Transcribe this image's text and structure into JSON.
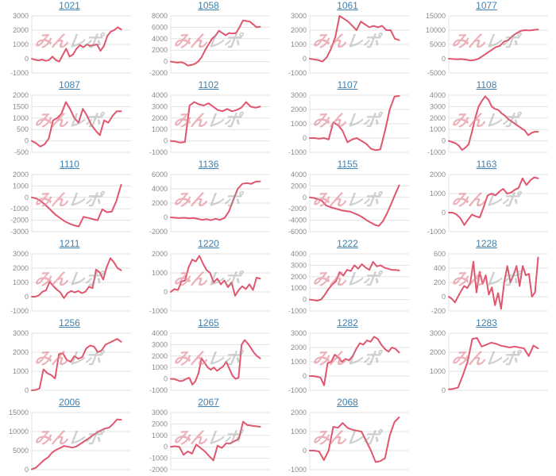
{
  "watermark": {
    "pink": "みん",
    "gray": "レポ"
  },
  "colors": {
    "line": "#e0566e",
    "grid": "#e3e3e3",
    "axis_label": "#8a8a8a",
    "title_link": "#4181ad",
    "background": "#ffffff"
  },
  "chart_data": [
    {
      "type": "line",
      "title": "1021",
      "ylim": [
        -1000,
        3000
      ],
      "yticks": [
        3000,
        2000,
        1000,
        0,
        -1000
      ],
      "values": [
        0,
        -80,
        -120,
        -60,
        -150,
        -100,
        150,
        -100,
        -200,
        250,
        700,
        150,
        300,
        700,
        950,
        800,
        1000,
        900,
        950,
        1000,
        550,
        900,
        1600,
        1900,
        2000,
        2200,
        2050
      ]
    },
    {
      "type": "line",
      "title": "1058",
      "ylim": [
        -2000,
        8000
      ],
      "yticks": [
        8000,
        6000,
        4000,
        2000,
        0,
        -2000
      ],
      "values": [
        0,
        -100,
        -200,
        -100,
        -300,
        -700,
        -600,
        -400,
        0,
        800,
        2000,
        3000,
        4000,
        4500,
        5400,
        5000,
        4600,
        5000,
        4900,
        5000,
        6000,
        7200,
        7100,
        7000,
        6500,
        6000,
        6100
      ]
    },
    {
      "type": "line",
      "title": "1061",
      "ylim": [
        -1000,
        3000
      ],
      "yticks": [
        3000,
        2000,
        1000,
        0,
        -1000
      ],
      "values": [
        0,
        -50,
        -100,
        -200,
        100,
        700,
        1500,
        3000,
        2800,
        2600,
        2300,
        2000,
        2600,
        2400,
        2200,
        2300,
        2200,
        2300,
        2000,
        2000,
        1400,
        1300
      ]
    },
    {
      "type": "line",
      "title": "1077",
      "ylim": [
        -5000,
        15000
      ],
      "yticks": [
        15000,
        10000,
        5000,
        0,
        -5000
      ],
      "values": [
        0,
        -100,
        -200,
        -100,
        -300,
        -600,
        -500,
        0,
        1000,
        2000,
        3000,
        4000,
        4500,
        6000,
        6500,
        8000,
        9000,
        9800,
        10000,
        9900,
        10100,
        10200
      ]
    },
    {
      "type": "line",
      "title": "1087",
      "ylim": [
        -500,
        2000
      ],
      "yticks": [
        2000,
        1500,
        1000,
        500,
        0,
        -500
      ],
      "values": [
        0,
        -100,
        -250,
        -150,
        100,
        900,
        1000,
        1200,
        1700,
        1400,
        1000,
        800,
        1400,
        1100,
        700,
        450,
        250,
        900,
        800,
        1100,
        1300,
        1300
      ]
    },
    {
      "type": "line",
      "title": "1102",
      "ylim": [
        -1000,
        4000
      ],
      "yticks": [
        4000,
        3000,
        2000,
        1000,
        0,
        -1000
      ],
      "values": [
        0,
        -50,
        -150,
        -100,
        3100,
        3400,
        3200,
        3100,
        3300,
        3000,
        2700,
        2600,
        2800,
        2600,
        2700,
        2900,
        3400,
        3000,
        2900,
        3000
      ]
    },
    {
      "type": "line",
      "title": "1107",
      "ylim": [
        -1000,
        3000
      ],
      "yticks": [
        3000,
        2000,
        1000,
        0,
        -1000
      ],
      "values": [
        0,
        0,
        -50,
        0,
        -100,
        1100,
        900,
        500,
        -300,
        -100,
        0,
        -200,
        -400,
        -750,
        -850,
        -800,
        500,
        2000,
        2900,
        2950
      ]
    },
    {
      "type": "line",
      "title": "1108",
      "ylim": [
        -1000,
        4000
      ],
      "yticks": [
        4000,
        3000,
        2000,
        1000,
        0,
        -1000
      ],
      "values": [
        0,
        -100,
        -200,
        -400,
        -800,
        -600,
        -300,
        800,
        2000,
        3000,
        3500,
        3900,
        3600,
        3000,
        2800,
        2700,
        2400,
        2200,
        1900,
        1700,
        1500,
        1300,
        1100,
        900,
        500,
        700,
        800,
        800
      ]
    },
    {
      "type": "line",
      "title": "1110",
      "ylim": [
        -3000,
        2000
      ],
      "yticks": [
        2000,
        1000,
        0,
        -1000,
        -2000,
        -3000
      ],
      "values": [
        0,
        -100,
        -350,
        -700,
        -1100,
        -1500,
        -1800,
        -2100,
        -2300,
        -2450,
        -2550,
        -1700,
        -1800,
        -1900,
        -2000,
        -1050,
        -1300,
        -1250,
        -300,
        1100
      ]
    },
    {
      "type": "line",
      "title": "1136",
      "ylim": [
        -2000,
        6000
      ],
      "yticks": [
        6000,
        4000,
        2000,
        0,
        -2000
      ],
      "values": [
        0,
        -50,
        -100,
        -50,
        -150,
        -100,
        -200,
        -350,
        -250,
        -400,
        -200,
        -350,
        -100,
        800,
        2500,
        4000,
        4700,
        4800,
        4700,
        5000,
        5050
      ]
    },
    {
      "type": "line",
      "title": "1155",
      "ylim": [
        -6000,
        4000
      ],
      "yticks": [
        4000,
        2000,
        0,
        -2000,
        -4000,
        -6000
      ],
      "values": [
        0,
        -100,
        -300,
        -600,
        -1400,
        -1700,
        -1900,
        -2100,
        -2300,
        -2400,
        -2500,
        -2800,
        -3100,
        -3500,
        -4000,
        -4400,
        -4800,
        -5000,
        -4200,
        -2800,
        -1200,
        500,
        2100
      ]
    },
    {
      "type": "line",
      "title": "1163",
      "ylim": [
        -1000,
        2000
      ],
      "yticks": [
        2000,
        1000,
        0,
        -1000
      ],
      "values": [
        0,
        0,
        -100,
        -300,
        -650,
        -350,
        -100,
        -200,
        -250,
        300,
        900,
        1000,
        900,
        1100,
        1250,
        1000,
        1050,
        1200,
        1300,
        1800,
        1450,
        1700,
        1850,
        1800
      ]
    },
    {
      "type": "line",
      "title": "1211",
      "ylim": [
        -1000,
        3000
      ],
      "yticks": [
        3000,
        2000,
        1000,
        0,
        -1000
      ],
      "values": [
        0,
        0,
        100,
        350,
        450,
        1050,
        750,
        500,
        300,
        -100,
        250,
        400,
        300,
        400,
        250,
        350,
        700,
        600,
        1900,
        1700,
        1200,
        2100,
        2700,
        2400,
        2000,
        1850
      ]
    },
    {
      "type": "line",
      "title": "1220",
      "ylim": [
        -1000,
        2000
      ],
      "yticks": [
        2000,
        1000,
        0,
        -1000
      ],
      "values": [
        0,
        150,
        100,
        550,
        600,
        1300,
        1700,
        1600,
        1900,
        1500,
        1150,
        1000,
        500,
        700,
        400,
        600,
        250,
        500,
        -200,
        100,
        300,
        150,
        400,
        100,
        750,
        700
      ]
    },
    {
      "type": "line",
      "title": "1222",
      "ylim": [
        -1000,
        4000
      ],
      "yticks": [
        4000,
        3000,
        2000,
        1000,
        0,
        -1000
      ],
      "values": [
        0,
        -50,
        -100,
        0,
        400,
        900,
        1300,
        1600,
        2400,
        2100,
        2600,
        2500,
        3000,
        2700,
        3100,
        2800,
        2600,
        3300,
        2900,
        3000,
        2800,
        2700,
        2600,
        2600,
        2550
      ]
    },
    {
      "type": "line",
      "title": "1228",
      "ylim": [
        -200,
        600
      ],
      "yticks": [
        600,
        400,
        200,
        0,
        -200
      ],
      "values": [
        0,
        -30,
        -80,
        0,
        80,
        150,
        120,
        200,
        490,
        60,
        350,
        180,
        300,
        30,
        130,
        -120,
        50,
        -170,
        200,
        430,
        200,
        300,
        430,
        150,
        430,
        300,
        320,
        0,
        60,
        550
      ]
    },
    {
      "type": "line",
      "title": "1256",
      "ylim": [
        0,
        3000
      ],
      "yticks": [
        3000,
        2000,
        1000,
        0
      ],
      "values": [
        0,
        20,
        100,
        1100,
        900,
        800,
        620,
        1900,
        1950,
        1600,
        1500,
        1800,
        1650,
        1750,
        2200,
        2350,
        2300,
        2000,
        2100,
        2400,
        2500,
        2600,
        2700,
        2550
      ]
    },
    {
      "type": "line",
      "title": "1265",
      "ylim": [
        -1000,
        4000
      ],
      "yticks": [
        4000,
        3000,
        2000,
        1000,
        0,
        -1000
      ],
      "values": [
        0,
        0,
        -100,
        -200,
        -150,
        0,
        100,
        -500,
        -200,
        500,
        1800,
        1400,
        1000,
        800,
        1000,
        700,
        900,
        1100,
        1500,
        900,
        300,
        0,
        100,
        3000,
        3400,
        3100,
        2700,
        2300,
        2000,
        1800
      ]
    },
    {
      "type": "line",
      "title": "1282",
      "ylim": [
        -1000,
        3000
      ],
      "yticks": [
        3000,
        2000,
        1000,
        0,
        -1000
      ],
      "values": [
        0,
        0,
        -50,
        -100,
        -650,
        900,
        1000,
        1500,
        1300,
        1000,
        1200,
        1100,
        1400,
        1900,
        2300,
        2200,
        2500,
        2400,
        2750,
        2600,
        2200,
        1900,
        1700,
        2000,
        1900,
        1650
      ]
    },
    {
      "type": "line",
      "title": "1283",
      "ylim": [
        0,
        3000
      ],
      "yticks": [
        3000,
        2000,
        1000,
        0
      ],
      "values": [
        50,
        80,
        150,
        800,
        1500,
        2700,
        2750,
        2300,
        2400,
        2500,
        2450,
        2350,
        2300,
        2250,
        2300,
        2250,
        2200,
        1800,
        2350,
        2200
      ]
    },
    {
      "type": "line",
      "title": "2006",
      "ylim": [
        0,
        15000
      ],
      "yticks": [
        15000,
        10000,
        5000,
        0
      ],
      "values": [
        100,
        500,
        1500,
        2500,
        3200,
        4500,
        5200,
        5700,
        6200,
        6000,
        5800,
        6100,
        6800,
        7500,
        8200,
        9000,
        9700,
        10300,
        10800,
        11000,
        12000,
        13200,
        13100
      ]
    },
    {
      "type": "line",
      "title": "2067",
      "ylim": [
        -2000,
        3000
      ],
      "yticks": [
        3000,
        2000,
        1000,
        0,
        -1000,
        -2000
      ],
      "values": [
        0,
        50,
        0,
        -700,
        -400,
        -600,
        200,
        -100,
        -400,
        -800,
        -1200,
        100,
        -100,
        300,
        300,
        500,
        700,
        2200,
        1900,
        1850,
        1800,
        1750
      ]
    },
    {
      "type": "line",
      "title": "2068",
      "ylim": [
        -1000,
        2000
      ],
      "yticks": [
        2000,
        1000,
        0,
        -1000
      ],
      "values": [
        0,
        0,
        -50,
        -500,
        0,
        1250,
        1200,
        1450,
        1200,
        1100,
        1050,
        1000,
        500,
        0,
        -600,
        -550,
        -400,
        800,
        1500,
        1750
      ]
    }
  ]
}
